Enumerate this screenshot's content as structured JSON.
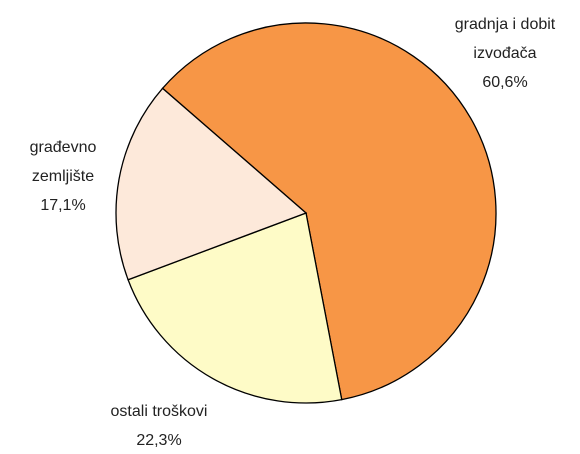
{
  "chart_data": {
    "type": "pie",
    "categories": [
      [
        "gradnja i dobit",
        "izvođača"
      ],
      [
        "ostali troškovi"
      ],
      [
        "građevno",
        "zemljište"
      ]
    ],
    "values": [
      60.6,
      22.3,
      17.1
    ],
    "value_labels": [
      "60,6%",
      "22,3%",
      "17,1%"
    ],
    "colors": [
      "#f79646",
      "#fefbc7",
      "#fde9da"
    ]
  }
}
